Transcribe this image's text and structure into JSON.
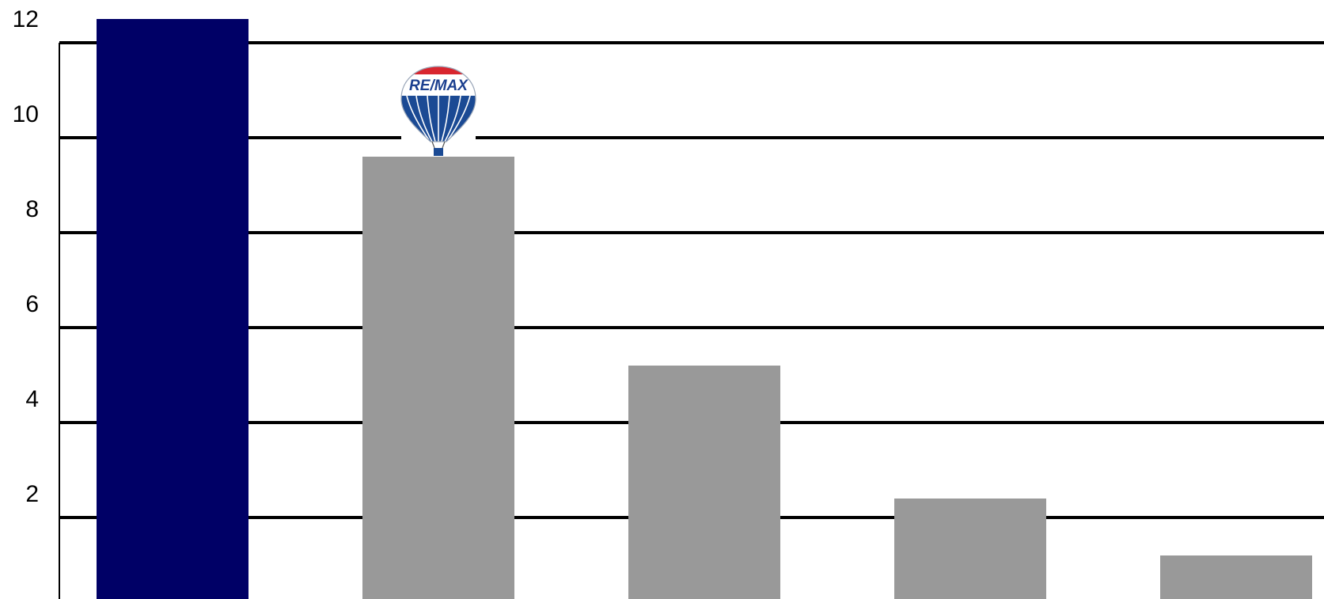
{
  "chart_data": {
    "type": "bar",
    "title": "",
    "xlabel": "",
    "ylabel": "",
    "ylim": [
      0,
      12
    ],
    "ytick_labels": [
      "2",
      "4",
      "6",
      "8",
      "10",
      "12"
    ],
    "ytick_values": [
      2,
      4,
      6,
      8,
      10,
      12
    ],
    "grid": true,
    "values": [
      12.5,
      9.6,
      5.2,
      2.4,
      1.2
    ],
    "colors": [
      "#000066",
      "#999999",
      "#999999",
      "#999999",
      "#999999"
    ],
    "logo": {
      "text": "RE/MAX",
      "icon": "hot-air-balloon-icon",
      "on_bar": 1
    }
  }
}
